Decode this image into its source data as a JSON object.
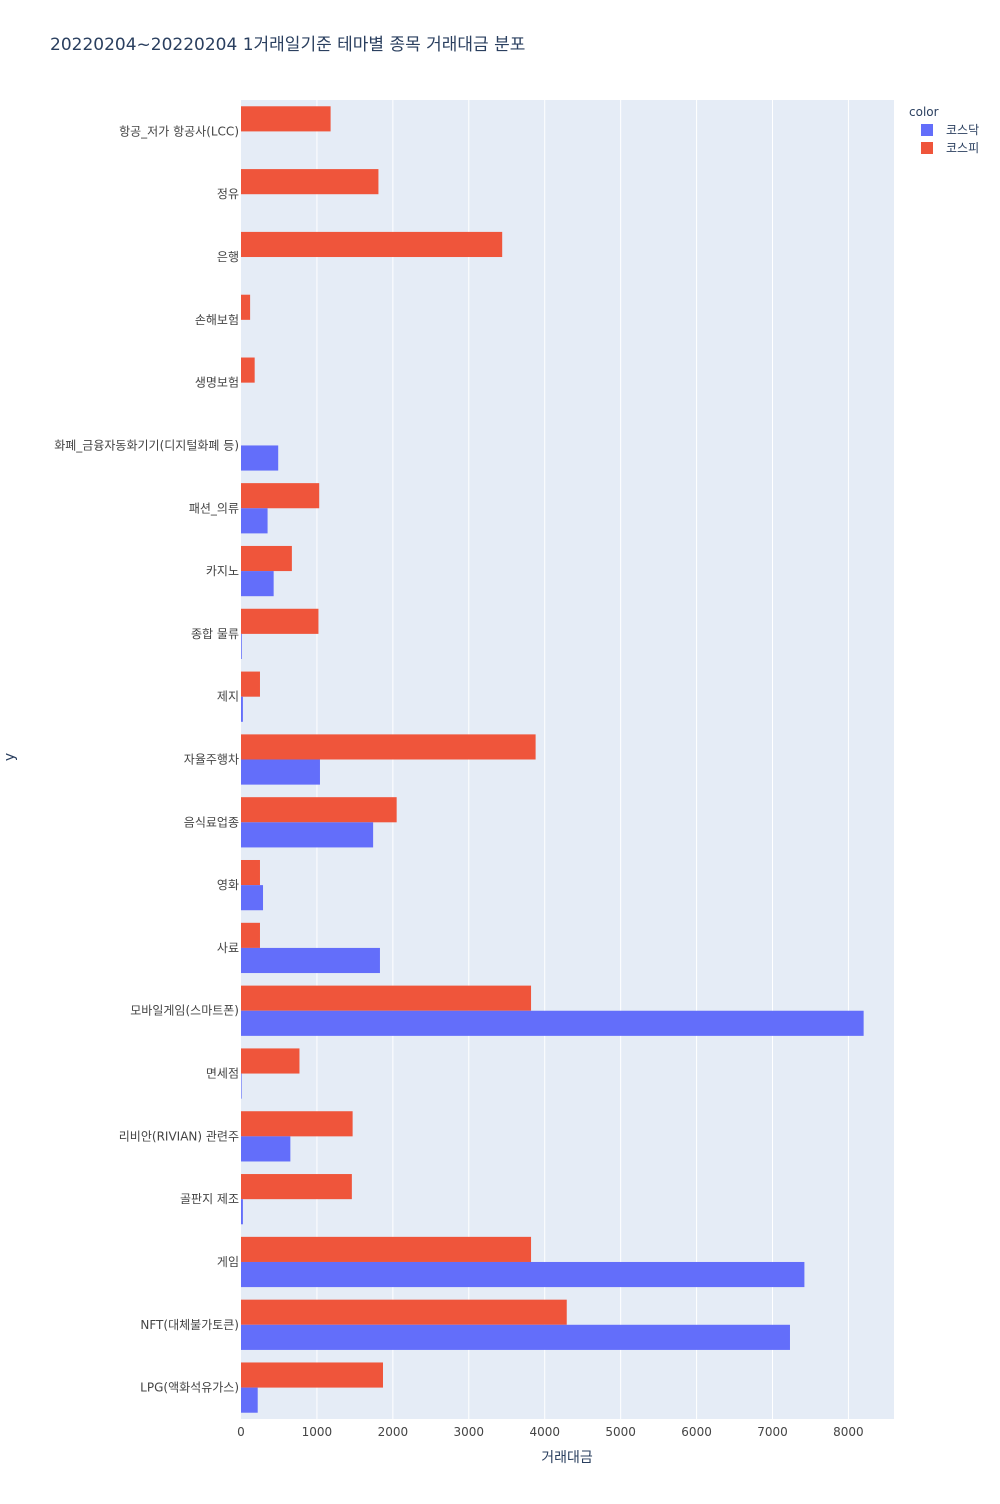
{
  "chart_data": {
    "type": "bar",
    "orientation": "horizontal",
    "barmode": "group",
    "title": "20220204~20220204 1거래일기준 테마별 종목 거래대금 분포",
    "xlabel": "거래대금",
    "ylabel": "y",
    "xlim": [
      0,
      8600
    ],
    "xticks": [
      0,
      1000,
      2000,
      3000,
      4000,
      5000,
      6000,
      7000,
      8000
    ],
    "grid": true,
    "legend": {
      "title": "color",
      "position": "top-right"
    },
    "categories": [
      "항공_저가 항공사(LCC)",
      "정유",
      "은행",
      "손해보험",
      "생명보험",
      "화폐_금융자동화기기(디지털화폐 등)",
      "패션_의류",
      "카지노",
      "종합 물류",
      "제지",
      "자율주행차",
      "음식료업종",
      "영화",
      "사료",
      "모바일게임(스마트폰)",
      "면세점",
      "리비안(RIVIAN) 관련주",
      "골판지 제조",
      "게임",
      "NFT(대체불가토큰)",
      "LPG(액화석유가스)"
    ],
    "series": [
      {
        "name": "코스닥",
        "color": "#636efa",
        "values": [
          0,
          0,
          0,
          0,
          0,
          490,
          350,
          430,
          10,
          25,
          1040,
          1740,
          290,
          1830,
          8200,
          8,
          650,
          25,
          7420,
          7230,
          220
        ]
      },
      {
        "name": "코스피",
        "color": "#ef553b",
        "values": [
          1180,
          1810,
          3440,
          120,
          180,
          0,
          1030,
          670,
          1020,
          250,
          3880,
          2050,
          250,
          250,
          3820,
          770,
          1470,
          1460,
          3820,
          4290,
          1870
        ]
      }
    ],
    "colors": {
      "plot_bg": "#e5ecf6",
      "grid": "#ffffff",
      "text": "#2a3f5f",
      "axis_text": "#444444"
    }
  }
}
